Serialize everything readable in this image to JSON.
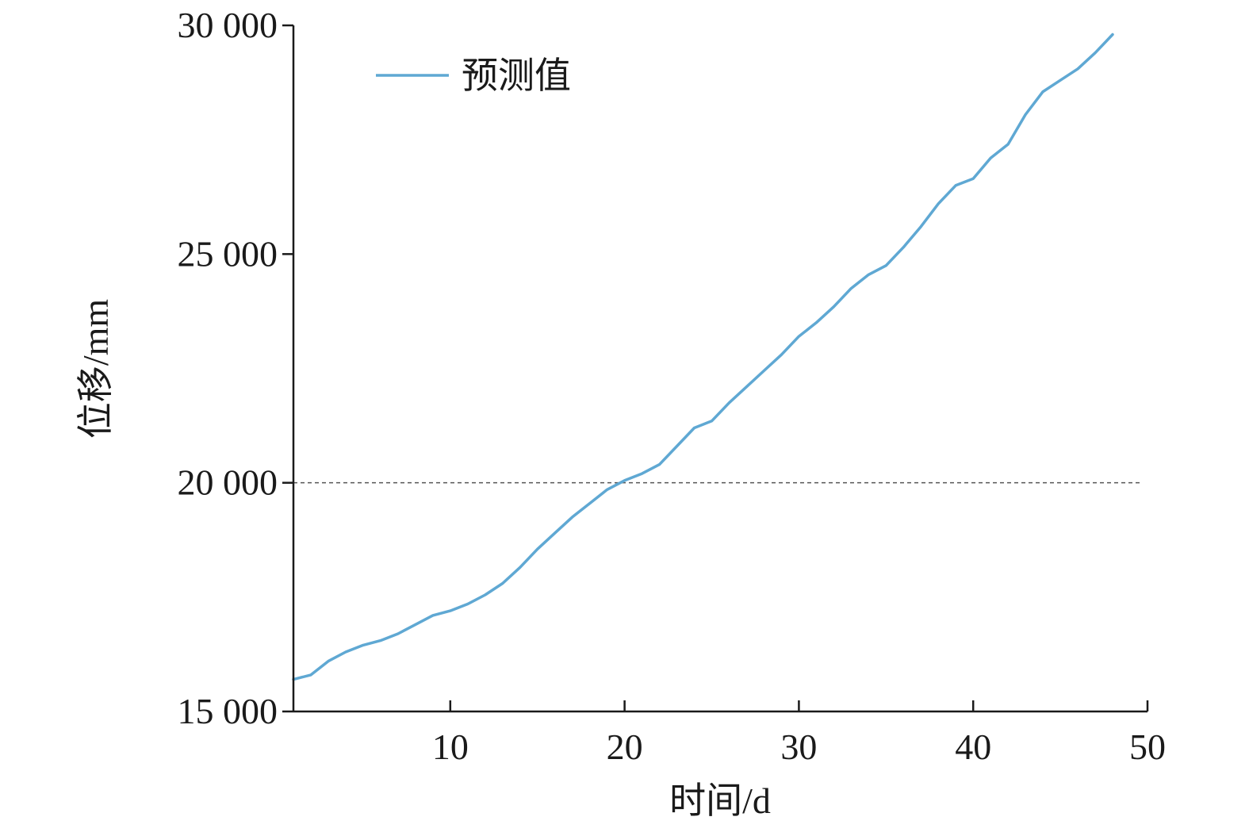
{
  "chart_data": {
    "type": "line",
    "xlabel": "时间/d",
    "ylabel": "位移/mm",
    "xlim": [
      1,
      50
    ],
    "ylim": [
      15000,
      30000
    ],
    "x_ticks": [
      10,
      20,
      30,
      40,
      50
    ],
    "x_tick_labels": [
      "10",
      "20",
      "30",
      "40",
      "50"
    ],
    "y_ticks": [
      15000,
      20000,
      25000,
      30000
    ],
    "y_tick_labels": [
      "15 000",
      "20 000",
      "25 000",
      "30 000"
    ],
    "reference_line": {
      "y": 20000,
      "style": "dashed"
    },
    "grid": false,
    "legend": {
      "position": "top-left"
    },
    "series": [
      {
        "name": "预测值",
        "color": "#5fa8d3",
        "x": [
          1,
          2,
          3,
          4,
          5,
          6,
          7,
          8,
          9,
          10,
          11,
          12,
          13,
          14,
          15,
          16,
          17,
          18,
          19,
          20,
          21,
          22,
          23,
          24,
          25,
          26,
          27,
          28,
          29,
          30,
          31,
          32,
          33,
          34,
          35,
          36,
          37,
          38,
          39,
          40,
          41,
          42,
          43,
          44,
          45,
          46,
          47,
          48
        ],
        "values": [
          15700,
          15800,
          16100,
          16300,
          16450,
          16550,
          16700,
          16900,
          17100,
          17200,
          17350,
          17550,
          17800,
          18150,
          18550,
          18900,
          19250,
          19550,
          19850,
          20050,
          20200,
          20400,
          20800,
          21200,
          21350,
          21750,
          22100,
          22450,
          22800,
          23200,
          23500,
          23850,
          24250,
          24550,
          24750,
          25150,
          25600,
          26100,
          26500,
          26650,
          27100,
          27400,
          28050,
          28550,
          28800,
          29050,
          29400,
          29800
        ]
      }
    ]
  }
}
